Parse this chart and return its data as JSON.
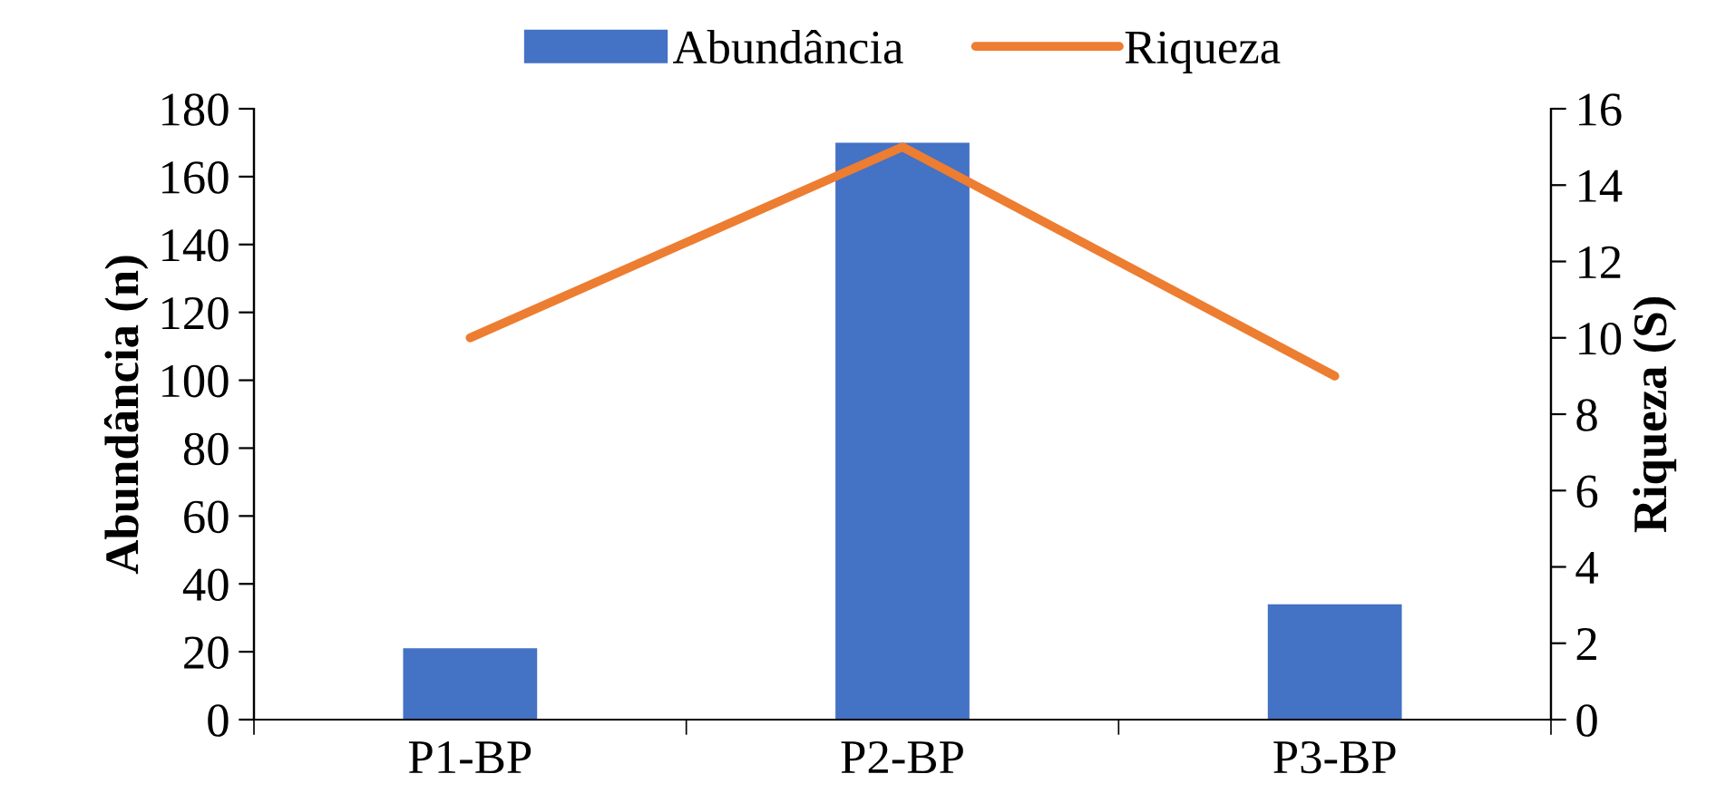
{
  "chart_data": {
    "type": "bar",
    "categories": [
      "P1-BP",
      "P2-BP",
      "P3-BP"
    ],
    "series": [
      {
        "name": "Abundância",
        "color": "#4472c4",
        "values": [
          21,
          170,
          34
        ]
      },
      {
        "name": "Riqueza",
        "type": "line",
        "axis": "y2",
        "color": "#ed7d31",
        "values": [
          10,
          15,
          9
        ]
      }
    ],
    "ylabel": "Abundância (n)",
    "y2label": "Riqueza (S)",
    "ylim": [
      0,
      180
    ],
    "yticks": [
      0,
      20,
      40,
      60,
      80,
      100,
      120,
      140,
      160,
      180
    ],
    "y2lim": [
      0,
      16
    ],
    "y2ticks": [
      0,
      2,
      4,
      6,
      8,
      10,
      12,
      14,
      16
    ],
    "legend": "top",
    "grid": false,
    "marker": "none",
    "line_style": "solid"
  }
}
